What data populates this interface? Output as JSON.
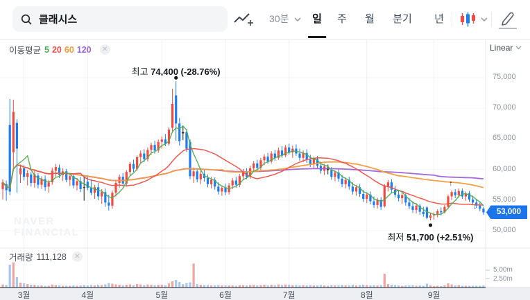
{
  "toolbar": {
    "search": {
      "value": "클래시스",
      "icon": "search-icon"
    },
    "chart_style_icon": "line-chart-plus-icon",
    "interval_dropdown": {
      "label": "30분"
    },
    "tabs": [
      {
        "label": "일",
        "active": true
      },
      {
        "label": "주",
        "active": false
      },
      {
        "label": "월",
        "active": false
      },
      {
        "label": "분기",
        "active": false
      },
      {
        "label": "년",
        "active": false
      }
    ],
    "candle_style_icon": "candlestick-icon",
    "draw_icon": "pencil-icon"
  },
  "price_pane": {
    "ma_legend": {
      "label": "이동평균",
      "periods": [
        {
          "label": "5",
          "color": "#4cae4f"
        },
        {
          "label": "20",
          "color": "#ef5047"
        },
        {
          "label": "60",
          "color": "#f59b3a"
        },
        {
          "label": "120",
          "color": "#9f63d6"
        }
      ],
      "close_icon": "✕"
    },
    "scale_label": "Linear",
    "high_annotation": {
      "prefix": "최고",
      "bold_text": "74,400 (-28.76%)"
    },
    "low_annotation": {
      "prefix": "최저",
      "bold_text": "51,700 (+2.51%)"
    },
    "current_price_badge": "53,000",
    "y_ticks": [
      "75,000",
      "70,000",
      "65,000",
      "60,000",
      "55,000",
      "50,000"
    ]
  },
  "volume_pane": {
    "label": "거래량",
    "value": "111,128",
    "close_icon": "✕",
    "y_ticks": [
      "5.00m",
      "2.50m"
    ]
  },
  "x_axis": {
    "months": [
      "3월",
      "4월",
      "5월",
      "6월",
      "7월",
      "8월",
      "9월"
    ]
  },
  "watermark": {
    "line1": "NAVER",
    "line2": "FINANCIAL"
  },
  "colors": {
    "candle_up": "#ef4b42",
    "candle_down": "#1d7cf0",
    "candle_flat": "#17191c",
    "vol_up": "#f2a49e",
    "vol_down": "#a5c7f0",
    "vol_flat": "#b9bdc3",
    "ma5": "#4cae4f",
    "ma20": "#ef5047",
    "ma60": "#f59b3a",
    "ma120": "#9f63d6",
    "badge_blue": "#1a74ec",
    "grid": "#eef0f3",
    "axis_strip_bg": "#edeff2",
    "axis_strip_border": "#3f444b"
  },
  "chart_data": {
    "type": "candlestick+volume",
    "title": "클래시스 일봉 차트",
    "units": {
      "price": "x1000 KRW",
      "volume": "millions of shares"
    },
    "y_axis": {
      "min": 50000,
      "max": 75000,
      "tick_values": [
        75000,
        70000,
        65000,
        60000,
        55000,
        50000
      ]
    },
    "volume_axis": {
      "tick_values_m": [
        5.0,
        2.5
      ]
    },
    "moving_averages": [
      5,
      20,
      60,
      120
    ],
    "month_start_indices": [
      6,
      24,
      45,
      63,
      81,
      103,
      122
    ],
    "markers": {
      "high": {
        "index": 49,
        "price": 74400,
        "pct": "-28.76%"
      },
      "low": {
        "index": 121,
        "price": 51700,
        "pct": "+2.51%"
      },
      "up_arrow_index": 127,
      "down_arrow_index": 136,
      "last_close": 53000
    },
    "candles": [
      [
        56.8,
        58.4,
        55.1,
        57.9,
        "r",
        0.9
      ],
      [
        57.6,
        58.2,
        54.9,
        56.6,
        "b",
        0.7
      ],
      [
        67.3,
        71.5,
        55.8,
        56.4,
        "b",
        6.6
      ],
      [
        62.8,
        71.4,
        60.2,
        69.4,
        "r",
        7.3
      ],
      [
        67.6,
        68.2,
        56.2,
        63.4,
        "b",
        3.0
      ],
      [
        59.2,
        60.8,
        57.8,
        60.2,
        "r",
        1.4
      ],
      [
        60.2,
        60.7,
        58.2,
        58.8,
        "b",
        1.2
      ],
      [
        58.8,
        59.9,
        57.4,
        59.4,
        "r",
        1.0
      ],
      [
        59.2,
        59.6,
        57.2,
        57.8,
        "b",
        0.8
      ],
      [
        57.8,
        59.8,
        57.0,
        59.2,
        "r",
        0.8
      ],
      [
        59.0,
        59.4,
        56.9,
        57.5,
        "b",
        0.6
      ],
      [
        57.5,
        58.9,
        56.8,
        58.4,
        "r",
        0.6
      ],
      [
        58.4,
        59.0,
        56.5,
        57.1,
        "b",
        0.5
      ],
      [
        57.2,
        58.3,
        56.2,
        57.9,
        "r",
        0.5
      ],
      [
        57.9,
        60.3,
        57.5,
        59.8,
        "r",
        0.9
      ],
      [
        59.8,
        60.9,
        58.8,
        60.4,
        "r",
        0.7
      ],
      [
        60.3,
        60.8,
        58.6,
        59.1,
        "b",
        0.6
      ],
      [
        59.1,
        60.2,
        58.1,
        59.7,
        "r",
        0.5
      ],
      [
        59.7,
        60.1,
        57.9,
        58.3,
        "b",
        0.5
      ],
      [
        58.3,
        59.4,
        57.3,
        58.9,
        "r",
        0.5
      ],
      [
        58.9,
        59.3,
        56.9,
        57.4,
        "b",
        0.6
      ],
      [
        57.4,
        58.6,
        56.6,
        58.1,
        "r",
        0.5
      ],
      [
        58.1,
        58.8,
        56.3,
        56.8,
        "b",
        0.6
      ],
      [
        57.0,
        58.9,
        54.9,
        57.1,
        "k",
        0.7
      ],
      [
        58.0,
        58.9,
        56.6,
        57.0,
        "b",
        0.6
      ],
      [
        57.0,
        58.4,
        55.8,
        56.2,
        "b",
        0.7
      ],
      [
        56.2,
        57.5,
        55.2,
        57.1,
        "r",
        0.6
      ],
      [
        57.1,
        57.8,
        55.0,
        55.6,
        "b",
        0.8
      ],
      [
        55.6,
        56.8,
        54.4,
        56.3,
        "r",
        0.7
      ],
      [
        56.3,
        56.9,
        53.9,
        54.6,
        "b",
        0.9
      ],
      [
        54.6,
        55.9,
        53.3,
        54.1,
        "b",
        1.3
      ],
      [
        54.1,
        56.6,
        53.6,
        56.2,
        "r",
        1.1
      ],
      [
        56.2,
        58.1,
        55.6,
        57.8,
        "r",
        0.9
      ],
      [
        57.8,
        59.2,
        57.0,
        58.8,
        "r",
        0.8
      ],
      [
        58.8,
        59.4,
        57.3,
        57.7,
        "b",
        0.6
      ],
      [
        57.7,
        59.9,
        57.2,
        59.6,
        "r",
        0.8
      ],
      [
        59.6,
        61.2,
        59.0,
        60.9,
        "r",
        0.9
      ],
      [
        60.9,
        61.6,
        59.6,
        60.1,
        "b",
        0.7
      ],
      [
        60.1,
        62.3,
        59.8,
        62.0,
        "r",
        1.0
      ],
      [
        62.0,
        63.1,
        61.0,
        62.6,
        "r",
        0.9
      ],
      [
        62.6,
        63.3,
        61.2,
        61.7,
        "b",
        0.7
      ],
      [
        61.7,
        63.6,
        61.3,
        63.2,
        "r",
        0.9
      ],
      [
        63.2,
        64.4,
        62.4,
        64.0,
        "r",
        0.8
      ],
      [
        64.0,
        64.7,
        62.6,
        63.1,
        "b",
        0.7
      ],
      [
        63.1,
        64.9,
        62.7,
        64.5,
        "r",
        0.8
      ],
      [
        64.5,
        65.4,
        63.4,
        64.9,
        "r",
        0.8
      ],
      [
        64.9,
        65.8,
        63.8,
        64.2,
        "b",
        0.7
      ],
      [
        64.2,
        66.9,
        63.9,
        66.5,
        "r",
        1.2
      ],
      [
        66.8,
        73.2,
        66.2,
        70.7,
        "r",
        1.8
      ],
      [
        72.1,
        74.4,
        64.7,
        67.5,
        "b",
        2.2
      ],
      [
        67.5,
        68.4,
        63.9,
        64.6,
        "b",
        1.6
      ],
      [
        65.9,
        67.2,
        64.8,
        66.1,
        "k",
        1.0
      ],
      [
        66.1,
        66.6,
        62.9,
        63.4,
        "b",
        1.3
      ],
      [
        64.5,
        64.9,
        58.4,
        58.9,
        "b",
        1.5
      ],
      [
        58.9,
        60.3,
        57.8,
        59.7,
        "r",
        6.9
      ],
      [
        59.7,
        60.1,
        57.9,
        58.4,
        "b",
        1.0
      ],
      [
        58.4,
        59.8,
        57.6,
        59.3,
        "r",
        0.8
      ],
      [
        59.3,
        59.9,
        58.0,
        58.6,
        "b",
        0.7
      ],
      [
        58.6,
        59.2,
        57.1,
        57.6,
        "b",
        0.7
      ],
      [
        57.6,
        58.8,
        56.9,
        58.3,
        "r",
        0.6
      ],
      [
        58.3,
        58.7,
        56.7,
        57.2,
        "b",
        0.6
      ],
      [
        57.2,
        57.9,
        55.9,
        56.4,
        "b",
        0.7
      ],
      [
        56.4,
        57.4,
        55.7,
        57.0,
        "r",
        0.6
      ],
      [
        57.0,
        57.7,
        55.8,
        56.3,
        "b",
        0.6
      ],
      [
        56.3,
        57.8,
        55.9,
        57.4,
        "r",
        0.6
      ],
      [
        57.4,
        58.6,
        56.8,
        58.2,
        "r",
        0.6
      ],
      [
        58.2,
        58.8,
        57.0,
        57.5,
        "b",
        0.5
      ],
      [
        57.5,
        59.3,
        57.1,
        58.9,
        "r",
        0.7
      ],
      [
        58.9,
        60.1,
        58.3,
        59.7,
        "r",
        0.7
      ],
      [
        59.7,
        60.2,
        58.4,
        58.8,
        "b",
        0.6
      ],
      [
        58.8,
        60.6,
        58.5,
        60.2,
        "r",
        0.7
      ],
      [
        60.2,
        61.4,
        59.6,
        61.0,
        "r",
        0.8
      ],
      [
        61.0,
        61.6,
        59.8,
        60.3,
        "b",
        0.6
      ],
      [
        60.3,
        61.9,
        59.9,
        61.5,
        "r",
        0.7
      ],
      [
        61.5,
        62.5,
        60.7,
        62.1,
        "r",
        0.8
      ],
      [
        62.1,
        62.7,
        60.9,
        61.3,
        "b",
        0.6
      ],
      [
        61.3,
        63.0,
        61.0,
        62.6,
        "r",
        0.8
      ],
      [
        62.6,
        63.2,
        61.4,
        61.9,
        "b",
        0.6
      ],
      [
        61.9,
        63.6,
        61.6,
        63.1,
        "r",
        0.9
      ],
      [
        63.1,
        63.8,
        61.9,
        62.3,
        "b",
        0.7
      ],
      [
        62.3,
        64.0,
        62.0,
        63.6,
        "r",
        0.9
      ],
      [
        63.6,
        64.2,
        62.4,
        62.8,
        "b",
        0.8
      ],
      [
        62.8,
        63.9,
        61.9,
        63.4,
        "r",
        0.7
      ],
      [
        63.4,
        64.1,
        62.2,
        62.6,
        "b",
        0.7
      ],
      [
        62.6,
        63.4,
        61.4,
        61.9,
        "b",
        0.6
      ],
      [
        61.9,
        63.1,
        61.2,
        62.7,
        "r",
        0.7
      ],
      [
        62.7,
        63.3,
        61.1,
        61.6,
        "b",
        0.6
      ],
      [
        61.6,
        62.4,
        60.4,
        60.9,
        "b",
        0.7
      ],
      [
        60.9,
        62.1,
        60.2,
        61.7,
        "r",
        0.6
      ],
      [
        61.7,
        62.2,
        60.1,
        60.6,
        "b",
        0.6
      ],
      [
        60.6,
        61.3,
        59.3,
        59.8,
        "b",
        0.7
      ],
      [
        59.8,
        60.9,
        59.1,
        60.5,
        "r",
        0.6
      ],
      [
        60.3,
        60.8,
        59.2,
        59.9,
        "k",
        0.5
      ],
      [
        59.9,
        60.4,
        58.3,
        58.8,
        "b",
        0.7
      ],
      [
        58.8,
        59.9,
        58.1,
        59.5,
        "r",
        0.6
      ],
      [
        59.5,
        60.0,
        58.0,
        58.5,
        "b",
        0.6
      ],
      [
        58.5,
        59.1,
        57.1,
        57.6,
        "b",
        0.8
      ],
      [
        57.6,
        58.7,
        56.9,
        58.3,
        "r",
        0.6
      ],
      [
        58.3,
        58.8,
        56.7,
        57.2,
        "b",
        0.6
      ],
      [
        57.2,
        57.9,
        55.9,
        56.4,
        "b",
        0.8
      ],
      [
        56.4,
        57.5,
        55.7,
        57.1,
        "r",
        0.6
      ],
      [
        57.1,
        57.6,
        55.5,
        56.0,
        "b",
        0.7
      ],
      [
        56.0,
        56.7,
        54.7,
        55.2,
        "b",
        0.8
      ],
      [
        55.2,
        56.3,
        54.5,
        55.9,
        "r",
        0.7
      ],
      [
        55.9,
        56.4,
        54.3,
        54.8,
        "b",
        0.6
      ],
      [
        54.8,
        55.6,
        53.7,
        54.2,
        "b",
        0.7
      ],
      [
        54.2,
        55.4,
        53.6,
        55.0,
        "r",
        0.6
      ],
      [
        55.0,
        55.5,
        53.4,
        53.9,
        "b",
        0.7
      ],
      [
        54.0,
        57.6,
        53.8,
        57.3,
        "r",
        4.0
      ],
      [
        57.3,
        58.3,
        56.4,
        57.9,
        "r",
        1.0
      ],
      [
        57.9,
        58.4,
        56.2,
        56.7,
        "b",
        0.8
      ],
      [
        56.7,
        57.3,
        55.4,
        55.9,
        "b",
        0.7
      ],
      [
        55.9,
        56.6,
        54.8,
        55.3,
        "b",
        0.6
      ],
      [
        55.3,
        56.2,
        54.4,
        55.8,
        "r",
        0.5
      ],
      [
        55.8,
        56.1,
        54.1,
        54.6,
        "b",
        0.6
      ],
      [
        54.6,
        55.3,
        53.5,
        54.0,
        "b",
        0.6
      ],
      [
        54.0,
        54.8,
        52.9,
        53.4,
        "b",
        0.7
      ],
      [
        53.4,
        54.5,
        52.8,
        54.1,
        "r",
        0.5
      ],
      [
        54.1,
        54.4,
        52.6,
        53.1,
        "b",
        0.6
      ],
      [
        53.1,
        53.9,
        52.3,
        52.7,
        "b",
        0.5
      ],
      [
        53.8,
        54.0,
        51.9,
        52.1,
        "b",
        1.1
      ],
      [
        52.1,
        52.9,
        51.7,
        52.5,
        "r",
        0.6
      ],
      [
        52.5,
        53.0,
        51.8,
        52.7,
        "r",
        0.4
      ],
      [
        52.7,
        53.5,
        52.2,
        53.2,
        "r",
        0.5
      ],
      [
        53.2,
        53.8,
        52.5,
        53.0,
        "b",
        0.4
      ],
      [
        53.0,
        54.2,
        52.8,
        53.9,
        "r",
        0.6
      ],
      [
        53.9,
        55.9,
        53.6,
        55.6,
        "r",
        1.2
      ],
      [
        55.6,
        56.6,
        55.0,
        56.3,
        "r",
        0.9
      ],
      [
        56.3,
        56.8,
        55.3,
        55.8,
        "b",
        0.6
      ],
      [
        55.8,
        56.9,
        55.4,
        56.5,
        "r",
        0.7
      ],
      [
        56.5,
        56.9,
        55.2,
        55.6,
        "b",
        0.5
      ],
      [
        55.6,
        56.4,
        54.9,
        56.1,
        "r",
        0.5
      ],
      [
        56.1,
        56.5,
        54.7,
        55.1,
        "b",
        0.5
      ],
      [
        55.1,
        55.7,
        54.2,
        54.6,
        "b",
        0.5
      ],
      [
        54.6,
        55.2,
        53.7,
        54.1,
        "b",
        0.5
      ],
      [
        54.1,
        54.6,
        53.2,
        53.6,
        "b",
        0.5
      ],
      [
        53.6,
        53.9,
        52.6,
        53.0,
        "b",
        0.6
      ]
    ]
  }
}
